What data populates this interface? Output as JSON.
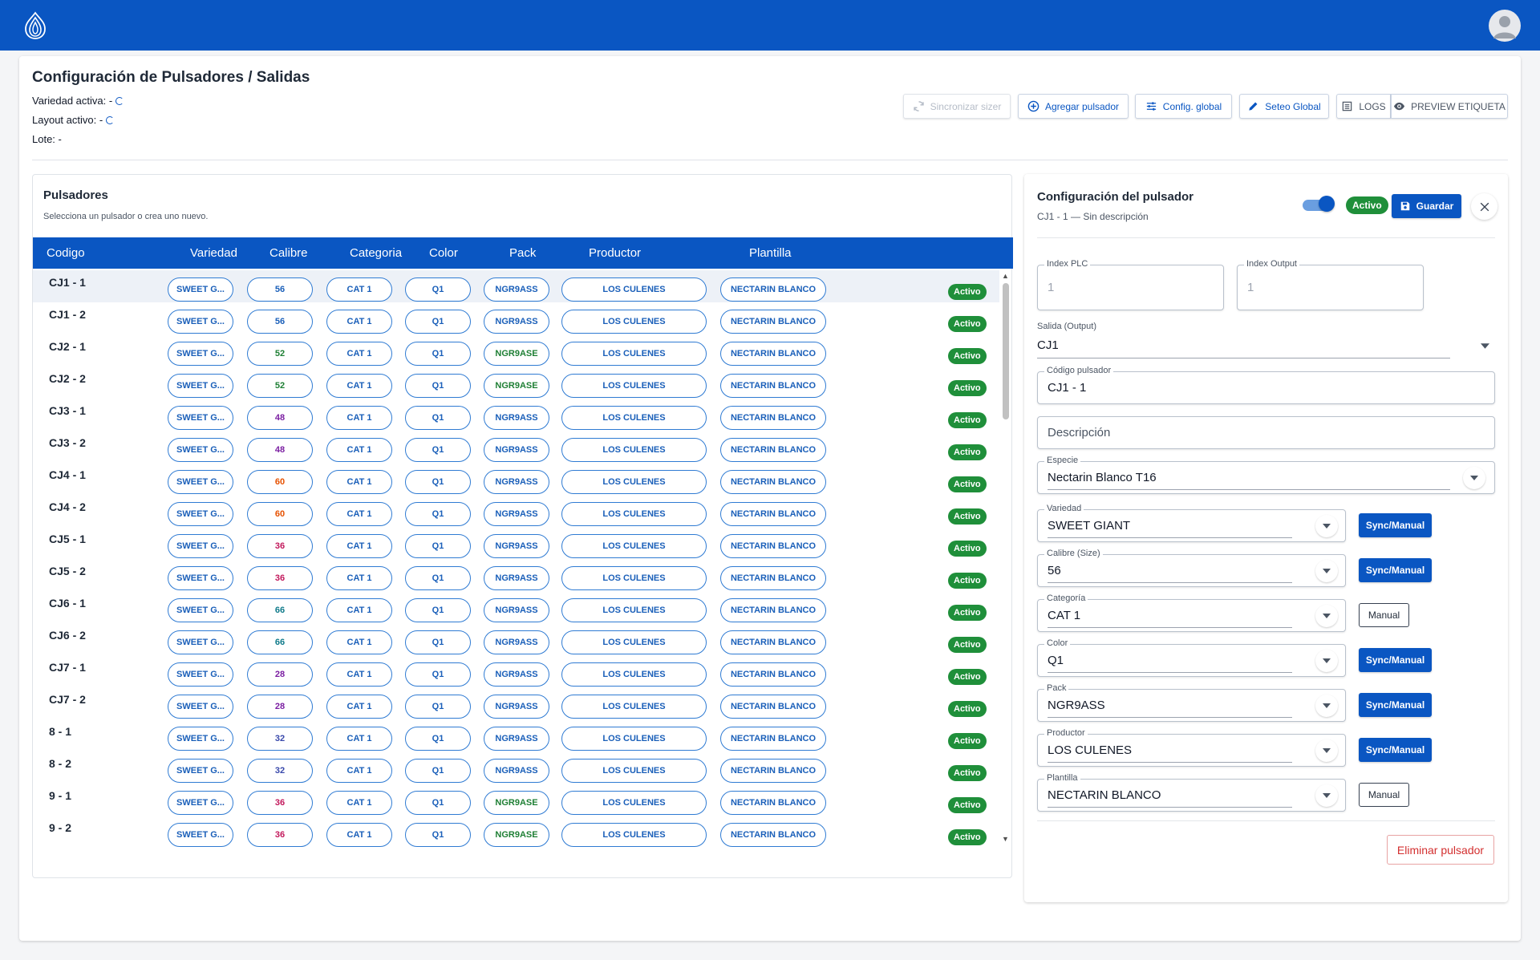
{
  "header": {},
  "page": {
    "title": "Configuración de Pulsadores / Salidas",
    "variedad_activa": "Variedad activa: -",
    "layout_activo": "Layout activo: -",
    "lote": "Lote: -"
  },
  "toolbar": {
    "sync_label": "Sincronizar sizer",
    "add_label": "Agregar pulsador",
    "config_label": "Config. global",
    "seteo_label": "Seteo Global",
    "logs_label": "LOGS",
    "preview_label": "PREVIEW ETIQUETA"
  },
  "pulsadores": {
    "title": "Pulsadores",
    "subtitle": "Selecciona un pulsador o crea uno nuevo.",
    "columns": [
      "Codigo",
      "Variedad",
      "Calibre",
      "Categoria",
      "Color",
      "Pack",
      "Productor",
      "Plantilla"
    ],
    "rows": [
      {
        "codigo": "CJ1 - 1",
        "variedad": "SWEET G...",
        "calibre": "56",
        "categoria": "CAT 1",
        "color": "Q1",
        "pack": "NGR9ASS",
        "productor": "LOS CULENES",
        "plantilla": "NECTARIN BLANCO",
        "estado": "Activo"
      },
      {
        "codigo": "CJ1 - 2",
        "variedad": "SWEET G...",
        "calibre": "56",
        "categoria": "CAT 1",
        "color": "Q1",
        "pack": "NGR9ASS",
        "productor": "LOS CULENES",
        "plantilla": "NECTARIN BLANCO",
        "estado": "Activo"
      },
      {
        "codigo": "CJ2 - 1",
        "variedad": "SWEET G...",
        "calibre": "52",
        "categoria": "CAT 1",
        "color": "Q1",
        "pack": "NGR9ASE",
        "productor": "LOS CULENES",
        "plantilla": "NECTARIN BLANCO",
        "estado": "Activo"
      },
      {
        "codigo": "CJ2 - 2",
        "variedad": "SWEET G...",
        "calibre": "52",
        "categoria": "CAT 1",
        "color": "Q1",
        "pack": "NGR9ASE",
        "productor": "LOS CULENES",
        "plantilla": "NECTARIN BLANCO",
        "estado": "Activo"
      },
      {
        "codigo": "CJ3 - 1",
        "variedad": "SWEET G...",
        "calibre": "48",
        "categoria": "CAT 1",
        "color": "Q1",
        "pack": "NGR9ASS",
        "productor": "LOS CULENES",
        "plantilla": "NECTARIN BLANCO",
        "estado": "Activo"
      },
      {
        "codigo": "CJ3 - 2",
        "variedad": "SWEET G...",
        "calibre": "48",
        "categoria": "CAT 1",
        "color": "Q1",
        "pack": "NGR9ASS",
        "productor": "LOS CULENES",
        "plantilla": "NECTARIN BLANCO",
        "estado": "Activo"
      },
      {
        "codigo": "CJ4 - 1",
        "variedad": "SWEET G...",
        "calibre": "60",
        "categoria": "CAT 1",
        "color": "Q1",
        "pack": "NGR9ASS",
        "productor": "LOS CULENES",
        "plantilla": "NECTARIN BLANCO",
        "estado": "Activo"
      },
      {
        "codigo": "CJ4 - 2",
        "variedad": "SWEET G...",
        "calibre": "60",
        "categoria": "CAT 1",
        "color": "Q1",
        "pack": "NGR9ASS",
        "productor": "LOS CULENES",
        "plantilla": "NECTARIN BLANCO",
        "estado": "Activo"
      },
      {
        "codigo": "CJ5 - 1",
        "variedad": "SWEET G...",
        "calibre": "36",
        "categoria": "CAT 1",
        "color": "Q1",
        "pack": "NGR9ASS",
        "productor": "LOS CULENES",
        "plantilla": "NECTARIN BLANCO",
        "estado": "Activo"
      },
      {
        "codigo": "CJ5 - 2",
        "variedad": "SWEET G...",
        "calibre": "36",
        "categoria": "CAT 1",
        "color": "Q1",
        "pack": "NGR9ASS",
        "productor": "LOS CULENES",
        "plantilla": "NECTARIN BLANCO",
        "estado": "Activo"
      },
      {
        "codigo": "CJ6 - 1",
        "variedad": "SWEET G...",
        "calibre": "66",
        "categoria": "CAT 1",
        "color": "Q1",
        "pack": "NGR9ASS",
        "productor": "LOS CULENES",
        "plantilla": "NECTARIN BLANCO",
        "estado": "Activo"
      },
      {
        "codigo": "CJ6 - 2",
        "variedad": "SWEET G...",
        "calibre": "66",
        "categoria": "CAT 1",
        "color": "Q1",
        "pack": "NGR9ASS",
        "productor": "LOS CULENES",
        "plantilla": "NECTARIN BLANCO",
        "estado": "Activo"
      },
      {
        "codigo": "CJ7 - 1",
        "variedad": "SWEET G...",
        "calibre": "28",
        "categoria": "CAT 1",
        "color": "Q1",
        "pack": "NGR9ASS",
        "productor": "LOS CULENES",
        "plantilla": "NECTARIN BLANCO",
        "estado": "Activo"
      },
      {
        "codigo": "CJ7 - 2",
        "variedad": "SWEET G...",
        "calibre": "28",
        "categoria": "CAT 1",
        "color": "Q1",
        "pack": "NGR9ASS",
        "productor": "LOS CULENES",
        "plantilla": "NECTARIN BLANCO",
        "estado": "Activo"
      },
      {
        "codigo": "8 - 1",
        "variedad": "SWEET G...",
        "calibre": "32",
        "categoria": "CAT 1",
        "color": "Q1",
        "pack": "NGR9ASS",
        "productor": "LOS CULENES",
        "plantilla": "NECTARIN BLANCO",
        "estado": "Activo"
      },
      {
        "codigo": "8 - 2",
        "variedad": "SWEET G...",
        "calibre": "32",
        "categoria": "CAT 1",
        "color": "Q1",
        "pack": "NGR9ASS",
        "productor": "LOS CULENES",
        "plantilla": "NECTARIN BLANCO",
        "estado": "Activo"
      },
      {
        "codigo": "9 - 1",
        "variedad": "SWEET G...",
        "calibre": "36",
        "categoria": "CAT 1",
        "color": "Q1",
        "pack": "NGR9ASE",
        "productor": "LOS CULENES",
        "plantilla": "NECTARIN BLANCO",
        "estado": "Activo"
      },
      {
        "codigo": "9 - 2",
        "variedad": "SWEET G...",
        "calibre": "36",
        "categoria": "CAT 1",
        "color": "Q1",
        "pack": "NGR9ASE",
        "productor": "LOS CULENES",
        "plantilla": "NECTARIN BLANCO",
        "estado": "Activo"
      }
    ],
    "calibre_colors": {
      "56": "#1a5fb9",
      "52": "#1e7f34",
      "48": "#7b1fa2",
      "60": "#e65100",
      "36": "#c2185b",
      "66": "#0f7a8a",
      "28": "#7b1fa2",
      "32": "#3949ab"
    },
    "pack_colors": {
      "NGR9ASS": "#1a5fb9",
      "NGR9ASE": "#1e7f34"
    }
  },
  "config": {
    "title": "Configuración del pulsador",
    "subtitle": "CJ1 - 1 — Sin descripción",
    "badge": "Activo",
    "save_label": "Guardar",
    "index_plc_label": "Index PLC",
    "index_plc_value": "1",
    "index_output_label": "Index Output",
    "index_output_value": "1",
    "salida_label": "Salida (Output)",
    "salida_value": "CJ1",
    "codigo_label": "Código pulsador",
    "codigo_value": "CJ1 - 1",
    "descripcion_placeholder": "Descripción",
    "especie_label": "Especie",
    "especie_value": "Nectarin Blanco T16",
    "fields": [
      {
        "label": "Variedad",
        "value": "SWEET GIANT",
        "button": "Sync/Manual",
        "style": "blue"
      },
      {
        "label": "Calibre (Size)",
        "value": "56",
        "button": "Sync/Manual",
        "style": "blue"
      },
      {
        "label": "Categoría",
        "value": "CAT 1",
        "button": "Manual",
        "style": "outline"
      },
      {
        "label": "Color",
        "value": "Q1",
        "button": "Sync/Manual",
        "style": "blue"
      },
      {
        "label": "Pack",
        "value": "NGR9ASS",
        "button": "Sync/Manual",
        "style": "blue"
      },
      {
        "label": "Productor",
        "value": "LOS CULENES",
        "button": "Sync/Manual",
        "style": "blue"
      },
      {
        "label": "Plantilla",
        "value": "NECTARIN BLANCO",
        "button": "Manual",
        "style": "outline"
      }
    ],
    "delete_label": "Eliminar pulsador"
  },
  "colors": {
    "primary": "#0a56c2",
    "success": "#1f8f3a",
    "danger": "#d32f2f"
  }
}
